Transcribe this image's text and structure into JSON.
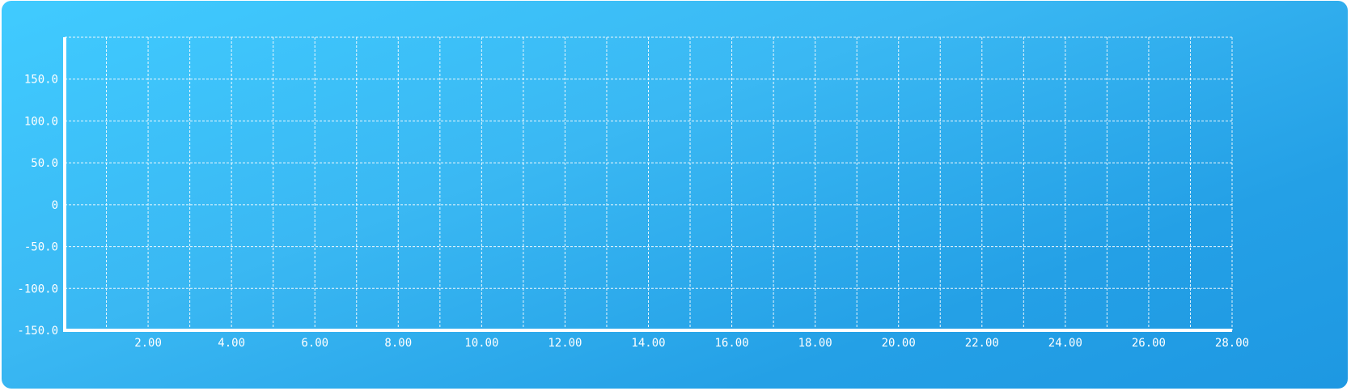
{
  "chart_data": {
    "type": "line",
    "title": "",
    "xlabel": "",
    "ylabel": "",
    "xlim": [
      0,
      28
    ],
    "ylim": [
      -150,
      200
    ],
    "x_ticks": [
      2,
      4,
      6,
      8,
      10,
      12,
      14,
      16,
      18,
      20,
      22,
      24,
      26,
      28
    ],
    "x_tick_labels": [
      "2.00",
      "4.00",
      "6.00",
      "8.00",
      "10.00",
      "12.00",
      "14.00",
      "16.00",
      "18.00",
      "20.00",
      "22.00",
      "24.00",
      "26.00",
      "28.00"
    ],
    "y_ticks": [
      -150,
      -100,
      -50,
      0,
      50,
      100,
      150
    ],
    "y_tick_labels": [
      "-150.0",
      "-100.0",
      "-50.0",
      "0",
      "50.0",
      "100.0",
      "150.0"
    ],
    "x_minor_step": 1,
    "y_grid_step": 50,
    "grid": true,
    "grid_style": "dashed",
    "series": [],
    "colors": {
      "panel_top": "#40cbff",
      "panel_bottom": "#1e98e2",
      "grid": "#ffffff",
      "axis": "#ffffff",
      "text": "#ffffff"
    }
  }
}
